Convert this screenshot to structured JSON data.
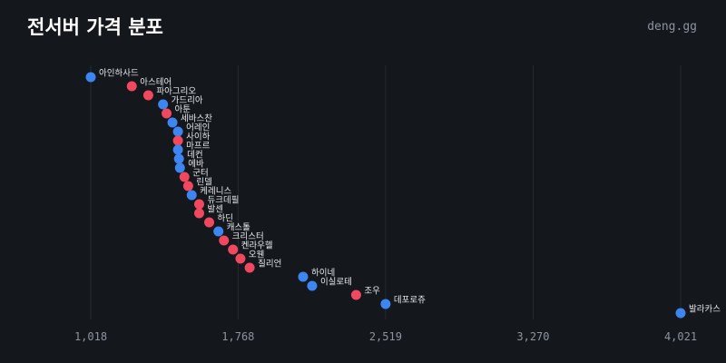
{
  "header": {
    "title": "전서버 가격 분포",
    "brand": "deng.gg"
  },
  "colors": {
    "background": "#14171c",
    "blue": "#3d85f0",
    "red": "#f0485e",
    "grid": "#262b33",
    "tick_text": "#8d949e"
  },
  "chart_data": {
    "type": "scatter",
    "title": "전서버 가격 분포",
    "xlabel": "",
    "ylabel": "",
    "x_ticks": [
      1018,
      1768,
      2519,
      3270,
      4021
    ],
    "x_tick_labels": [
      "1,018",
      "1,768",
      "2,519",
      "3,270",
      "4,021"
    ],
    "xlim": [
      1018,
      4021
    ],
    "grid": "vertical",
    "points": [
      {
        "label": "아인하사드",
        "x": 1018,
        "color": "blue"
      },
      {
        "label": "아스테어",
        "x": 1227,
        "color": "red"
      },
      {
        "label": "파아그리오",
        "x": 1311,
        "color": "red"
      },
      {
        "label": "가드리아",
        "x": 1386,
        "color": "blue"
      },
      {
        "label": "아툰",
        "x": 1404,
        "color": "red"
      },
      {
        "label": "세바스찬",
        "x": 1434,
        "color": "blue"
      },
      {
        "label": "어레인",
        "x": 1462,
        "color": "blue"
      },
      {
        "label": "사이하",
        "x": 1462,
        "color": "red"
      },
      {
        "label": "마프르",
        "x": 1462,
        "color": "blue"
      },
      {
        "label": "데컨",
        "x": 1467,
        "color": "blue"
      },
      {
        "label": "에바",
        "x": 1472,
        "color": "blue"
      },
      {
        "label": "군터",
        "x": 1495,
        "color": "red"
      },
      {
        "label": "린델",
        "x": 1514,
        "color": "red"
      },
      {
        "label": "케레니스",
        "x": 1532,
        "color": "blue"
      },
      {
        "label": "듀크데필",
        "x": 1570,
        "color": "red"
      },
      {
        "label": "발센",
        "x": 1570,
        "color": "red"
      },
      {
        "label": "하딘",
        "x": 1621,
        "color": "red"
      },
      {
        "label": "캐스톨",
        "x": 1668,
        "color": "blue"
      },
      {
        "label": "크리스터",
        "x": 1696,
        "color": "red"
      },
      {
        "label": "켄라우헬",
        "x": 1742,
        "color": "red"
      },
      {
        "label": "오웬",
        "x": 1780,
        "color": "red"
      },
      {
        "label": "질리언",
        "x": 1827,
        "color": "red"
      },
      {
        "label": "하이네",
        "x": 2099,
        "color": "blue"
      },
      {
        "label": "이실로테",
        "x": 2145,
        "color": "blue"
      },
      {
        "label": "조우",
        "x": 2369,
        "color": "red"
      },
      {
        "label": "데포로쥬",
        "x": 2519,
        "color": "blue"
      },
      {
        "label": "발라카스",
        "x": 4021,
        "color": "blue"
      }
    ]
  }
}
